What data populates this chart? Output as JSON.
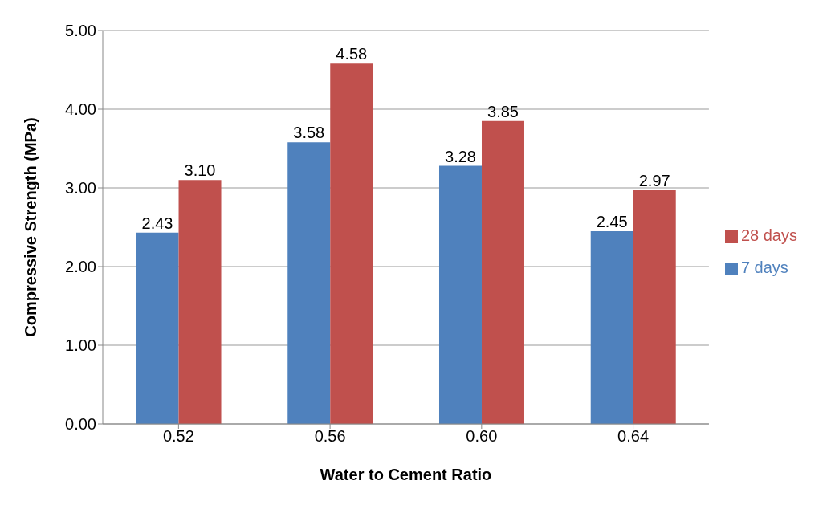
{
  "chart_data": {
    "type": "bar",
    "xlabel": "Water to Cement Ratio",
    "ylabel": "Compressive Strength (MPa)",
    "categories": [
      "0.52",
      "0.56",
      "0.60",
      "0.64"
    ],
    "series": [
      {
        "name": "7 days",
        "color": "#4f81bd",
        "values": [
          2.43,
          3.58,
          3.28,
          2.45
        ],
        "value_labels": [
          "2.43",
          "3.58",
          "3.28",
          "2.45"
        ]
      },
      {
        "name": "28 days",
        "color": "#c0504d",
        "values": [
          3.1,
          4.58,
          3.85,
          2.97
        ],
        "value_labels": [
          "3.10",
          "4.58",
          "3.85",
          "2.97"
        ]
      }
    ],
    "ylim": [
      0,
      5
    ],
    "yticks": [
      {
        "value": 0,
        "label": "0.00"
      },
      {
        "value": 1,
        "label": "1.00"
      },
      {
        "value": 2,
        "label": "2.00"
      },
      {
        "value": 3,
        "label": "3.00"
      },
      {
        "value": 4,
        "label": "4.00"
      },
      {
        "value": 5,
        "label": "5.00"
      }
    ],
    "grid": "y",
    "legend": "right"
  }
}
